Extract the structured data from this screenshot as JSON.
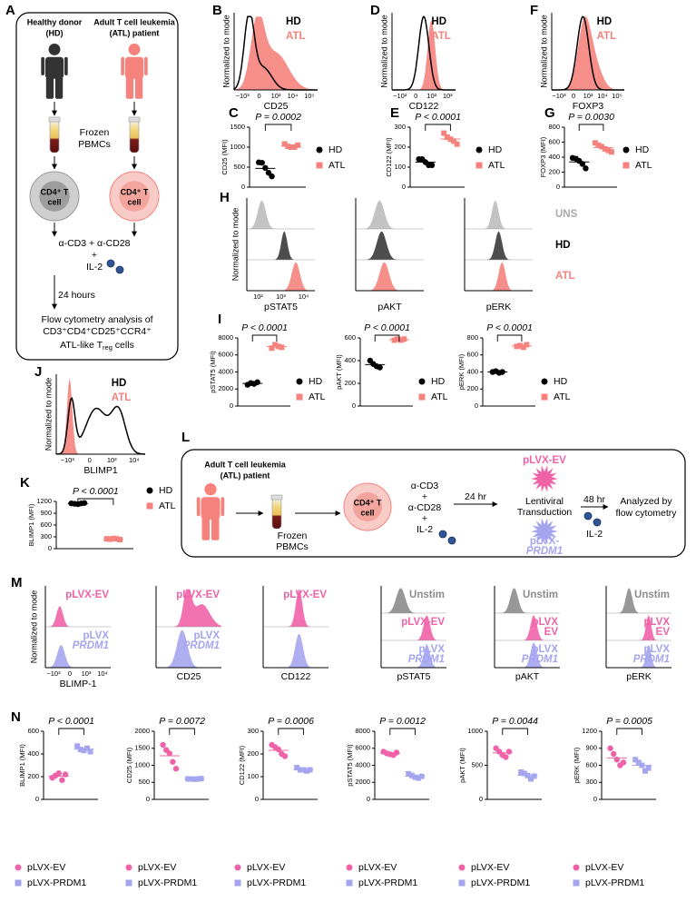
{
  "panel_A": {
    "label": "A",
    "hd": [
      "Healthy donor",
      "(HD)"
    ],
    "atl": [
      "Adult T cell leukemia",
      "(ATL) patient"
    ],
    "pbmc": [
      "Frozen",
      "PBMCs"
    ],
    "cell_hd": [
      "CD4⁺ T",
      "cell"
    ],
    "cell_atl": [
      "CD4⁺ T",
      "cell"
    ],
    "stim": [
      "α-CD3 + α-CD28",
      "+",
      "IL-2"
    ],
    "time": "24 hours",
    "readout": [
      "Flow cytometry analysis of",
      "CD3⁺CD4⁺CD25⁺CCR4⁺"
    ],
    "readout_last": [
      "ATL-like T",
      "reg",
      " cells"
    ]
  },
  "histograms": [
    {
      "label": "B",
      "ylabel": "Normalized to mode",
      "xlabel": "CD25",
      "xticks": [
        "−10³",
        "0",
        "10³",
        "10⁴",
        "10⁵"
      ],
      "legend": [
        "HD",
        "ATL"
      ]
    },
    {
      "label": "D",
      "ylabel": "Normalized to mode",
      "xlabel": "CD122",
      "xticks": [
        "−10²",
        "0",
        "10²",
        "10³"
      ],
      "legend": [
        "HD",
        "ATL"
      ]
    },
    {
      "label": "F",
      "ylabel": "Normalized to mode",
      "xlabel": "FOXP3",
      "xticks": [
        "−10³",
        "0",
        "10³",
        "10⁴",
        "10⁵"
      ],
      "legend": [
        "HD",
        "ATL"
      ]
    },
    {
      "label": "J",
      "ylabel": "Normalized to mode",
      "xlabel": "BLIMP1",
      "xticks": [
        "−10³",
        "0",
        "10³",
        "10⁴"
      ],
      "legend": [
        "HD",
        "ATL"
      ]
    }
  ],
  "panel_H": {
    "label": "H",
    "ylabel": "Normalized to mode",
    "rows": [
      "UNS",
      "HD",
      "ATL"
    ],
    "panels": [
      {
        "xlabel": "pSTAT5",
        "xticks": [
          "10²",
          "10³",
          "10⁴"
        ]
      },
      {
        "xlabel": "pAKT"
      },
      {
        "xlabel": "pERK"
      }
    ]
  },
  "dotplots": [
    {
      "label": "C",
      "ylabel": "CD25 (MFI)",
      "p": "P = 0.0002",
      "ylim": [
        0,
        1500
      ],
      "yticks": [
        0,
        500,
        1000,
        1500
      ],
      "series": [
        {
          "name": "HD",
          "color": "#000000",
          "values": [
            620,
            610,
            480,
            360,
            270
          ]
        },
        {
          "name": "ATL",
          "color": "#f5827c",
          "values": [
            1080,
            1020,
            1000,
            1000,
            1050
          ]
        }
      ]
    },
    {
      "label": "E",
      "ylabel": "CD122 (MFI)",
      "p": "P < 0.0001",
      "ylim": [
        0,
        300
      ],
      "yticks": [
        0,
        100,
        200,
        300
      ],
      "series": [
        {
          "name": "HD",
          "color": "#000000",
          "values": [
            140,
            140,
            125,
            110,
            110
          ]
        },
        {
          "name": "ATL",
          "color": "#f5827c",
          "values": [
            270,
            250,
            240,
            230,
            215
          ]
        }
      ]
    },
    {
      "label": "G",
      "ylabel": "FOXP3 (MFI)",
      "p": "P = 0.0030",
      "ylim": [
        0,
        800
      ],
      "yticks": [
        0,
        200,
        400,
        600,
        800
      ],
      "series": [
        {
          "name": "HD",
          "color": "#000000",
          "values": [
            390,
            380,
            350,
            310,
            250
          ]
        },
        {
          "name": "ATL",
          "color": "#f5827c",
          "values": [
            590,
            560,
            540,
            510,
            490,
            470
          ]
        }
      ]
    },
    {
      "label": "I",
      "ylabel": "pSTAT5 (MFI)",
      "p": "P < 0.0001",
      "ylim": [
        0,
        8000
      ],
      "yticks": [
        0,
        2000,
        4000,
        6000,
        8000
      ],
      "series": [
        {
          "name": "HD",
          "color": "#000000",
          "values": [
            2500,
            2700,
            2600,
            2800
          ]
        },
        {
          "name": "ATL",
          "color": "#f5827c",
          "values": [
            6800,
            7200,
            7000,
            6900
          ]
        }
      ]
    },
    {
      "ylabel": "pAKT (MFI)",
      "p": "P < 0.0001",
      "ylim": [
        0,
        600
      ],
      "yticks": [
        0,
        200,
        400,
        600
      ],
      "series": [
        {
          "name": "HD",
          "color": "#000000",
          "values": [
            400,
            370,
            350,
            340
          ]
        },
        {
          "name": "ATL",
          "color": "#f5827c",
          "values": [
            580,
            590,
            580,
            590
          ]
        }
      ]
    },
    {
      "ylabel": "pERK (MFI)",
      "p": "P < 0.0001",
      "ylim": [
        0,
        800
      ],
      "yticks": [
        0,
        200,
        400,
        600,
        800
      ],
      "series": [
        {
          "name": "HD",
          "color": "#000000",
          "values": [
            400,
            410,
            390,
            400
          ]
        },
        {
          "name": "ATL",
          "color": "#f5827c",
          "values": [
            700,
            710,
            690,
            720
          ]
        }
      ]
    },
    {
      "label": "K",
      "ylabel": "BLIMP1 (MFI)",
      "p": "P < 0.0001",
      "ylim": [
        0,
        1200
      ],
      "yticks": [
        0,
        300,
        600,
        900,
        1200
      ],
      "series": [
        {
          "name": "HD",
          "color": "#000000",
          "values": [
            1150,
            1140,
            1130,
            1150,
            1160
          ]
        },
        {
          "name": "ATL",
          "color": "#f5827c",
          "values": [
            250,
            240,
            260,
            250,
            230
          ]
        }
      ]
    },
    {
      "label": "N",
      "ylabel": "BLIMP1 (MFI)",
      "p": "P < 0.0001",
      "ylim": [
        0,
        600
      ],
      "yticks": [
        0,
        200,
        400,
        600
      ],
      "series": [
        {
          "name": "pLVX-EV",
          "color": "#f062a8",
          "values": [
            190,
            210,
            230,
            170,
            220
          ]
        },
        {
          "name": "pLVX-PRDM1",
          "color": "#a5a5ef",
          "values": [
            470,
            440,
            430,
            450,
            420
          ]
        }
      ]
    },
    {
      "ylabel": "CD25 (MFI)",
      "p": "P = 0.0072",
      "ylim": [
        0,
        2000
      ],
      "yticks": [
        0,
        500,
        1000,
        1500,
        2000
      ],
      "series": [
        {
          "name": "pLVX-EV",
          "color": "#f062a8",
          "values": [
            1600,
            1450,
            1350,
            1100,
            900
          ]
        },
        {
          "name": "pLVX-PRDM1",
          "color": "#a5a5ef",
          "values": [
            600,
            600,
            590,
            600,
            610
          ]
        }
      ]
    },
    {
      "ylabel": "CD122 (MFI)",
      "p": "P = 0.0006",
      "ylim": [
        0,
        300
      ],
      "yticks": [
        0,
        100,
        200,
        300
      ],
      "series": [
        {
          "name": "pLVX-EV",
          "color": "#f062a8",
          "values": [
            240,
            230,
            220,
            200,
            190
          ]
        },
        {
          "name": "pLVX-PRDM1",
          "color": "#a5a5ef",
          "values": [
            140,
            130,
            130,
            125,
            130
          ]
        }
      ]
    },
    {
      "ylabel": "pSTAT5 (MFI)",
      "p": "P = 0.0012",
      "ylim": [
        0,
        8000
      ],
      "yticks": [
        0,
        2000,
        4000,
        6000,
        8000
      ],
      "series": [
        {
          "name": "pLVX-EV",
          "color": "#f062a8",
          "values": [
            5600,
            5400,
            5300,
            5200,
            5500
          ]
        },
        {
          "name": "pLVX-PRDM1",
          "color": "#a5a5ef",
          "values": [
            3000,
            2800,
            2600,
            2500,
            2700
          ]
        }
      ]
    },
    {
      "ylabel": "pAKT (MFI)",
      "p": "P = 0.0044",
      "ylim": [
        0,
        1000
      ],
      "yticks": [
        0,
        500,
        1000
      ],
      "series": [
        {
          "name": "pLVX-EV",
          "color": "#f062a8",
          "values": [
            750,
            700,
            650,
            620,
            700
          ]
        },
        {
          "name": "pLVX-PRDM1",
          "color": "#a5a5ef",
          "values": [
            400,
            380,
            350,
            300,
            340
          ]
        }
      ]
    },
    {
      "ylabel": "pERK (MFI)",
      "p": "P = 0.0005",
      "ylim": [
        0,
        1200
      ],
      "yticks": [
        0,
        300,
        600,
        900,
        1200
      ],
      "series": [
        {
          "name": "pLVX-EV",
          "color": "#f062a8",
          "values": [
            900,
            800,
            700,
            600,
            650
          ]
        },
        {
          "name": "pLVX-PRDM1",
          "color": "#a5a5ef",
          "values": [
            700,
            650,
            600,
            500,
            550
          ]
        }
      ]
    }
  ],
  "panel_L": {
    "label": "L",
    "patient": [
      "Adult T cell leukemia",
      "(ATL) patient"
    ],
    "pbmc": [
      "Frozen",
      "PBMCs"
    ],
    "cell": [
      "CD4⁺ T",
      "cell"
    ],
    "stim": [
      "α-CD3",
      "+",
      "α-CD28",
      "+",
      "IL-2"
    ],
    "time1": "24 hr",
    "vector_top": "pLVX-EV",
    "transduction": [
      "Lentiviral",
      "Transduction"
    ],
    "vector_bottom": [
      "pLVX-",
      "PRDM1"
    ],
    "time2": "48 hr",
    "cytokine": "IL-2",
    "readout": [
      "Analyzed by",
      "flow cytometry"
    ]
  },
  "panel_M": {
    "label": "M",
    "ylabel": "Normalized to mode",
    "panels": [
      {
        "xlabel": "BLIMP-1",
        "xticks": [
          "−10³",
          "0",
          "10³",
          "10⁴"
        ],
        "rows": [
          [
            "pLVX-EV"
          ],
          [
            "pLVX",
            "PRDM1"
          ]
        ]
      },
      {
        "xlabel": "CD25",
        "rows": [
          [
            "pLVX-EV"
          ],
          [
            "pLVX",
            "PRDM1"
          ]
        ]
      },
      {
        "xlabel": "CD122",
        "rows": [
          [
            "pLVX-EV"
          ]
        ]
      },
      {
        "xlabel": "pSTAT5",
        "rows": [
          [
            "Unstim"
          ],
          [
            "pLVX-EV"
          ],
          [
            "pLVX",
            "PRDM1"
          ]
        ]
      },
      {
        "xlabel": "pAKT",
        "rows": [
          [
            "Unstim"
          ],
          [
            "pLVX",
            "EV"
          ],
          [
            "pLVX",
            "PRDM1"
          ]
        ]
      },
      {
        "xlabel": "pERK",
        "rows": [
          [
            "Unstim"
          ],
          [
            "pLVX",
            "EV"
          ],
          [
            "pLVX",
            "PRDM1"
          ]
        ]
      }
    ]
  }
}
